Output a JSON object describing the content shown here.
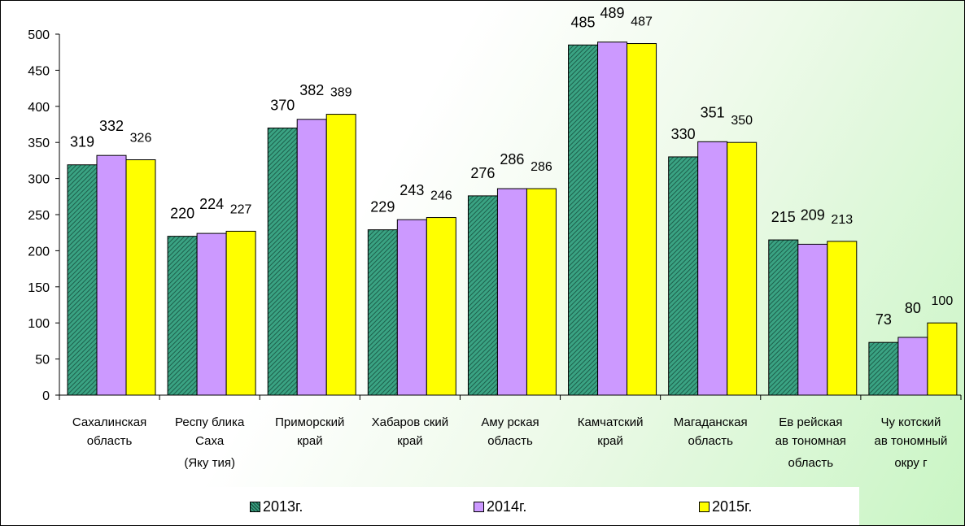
{
  "chart_data": {
    "type": "bar",
    "categories": [
      [
        "Сахалинская",
        "область"
      ],
      [
        "Респу блика",
        "Саха",
        "(Яку тия)"
      ],
      [
        "Приморский",
        "край"
      ],
      [
        "Хабаров ский",
        "край"
      ],
      [
        "Аму рская",
        "область"
      ],
      [
        "Камчатский",
        "край"
      ],
      [
        "Магаданская",
        "область"
      ],
      [
        "Ев рейская",
        "ав тономная",
        "область"
      ],
      [
        "Чу котский",
        "ав тономный",
        "окру г"
      ]
    ],
    "series": [
      {
        "name": "2013г.",
        "color": "#2e8b6e",
        "pattern": "hatch",
        "values": [
          319,
          220,
          370,
          229,
          276,
          485,
          330,
          215,
          73
        ]
      },
      {
        "name": "2014г.",
        "color": "#cc99ff",
        "values": [
          332,
          224,
          382,
          243,
          286,
          489,
          351,
          209,
          80
        ]
      },
      {
        "name": "2015г.",
        "color": "#ffff00",
        "values": [
          326,
          227,
          389,
          246,
          286,
          487,
          350,
          213,
          100
        ]
      }
    ],
    "ylim": [
      0,
      500
    ],
    "yticks": [
      0,
      50,
      100,
      150,
      200,
      250,
      300,
      350,
      400,
      450,
      500
    ],
    "grid": false,
    "legend_position": "bottom",
    "title": "",
    "xlabel": "",
    "ylabel": ""
  }
}
